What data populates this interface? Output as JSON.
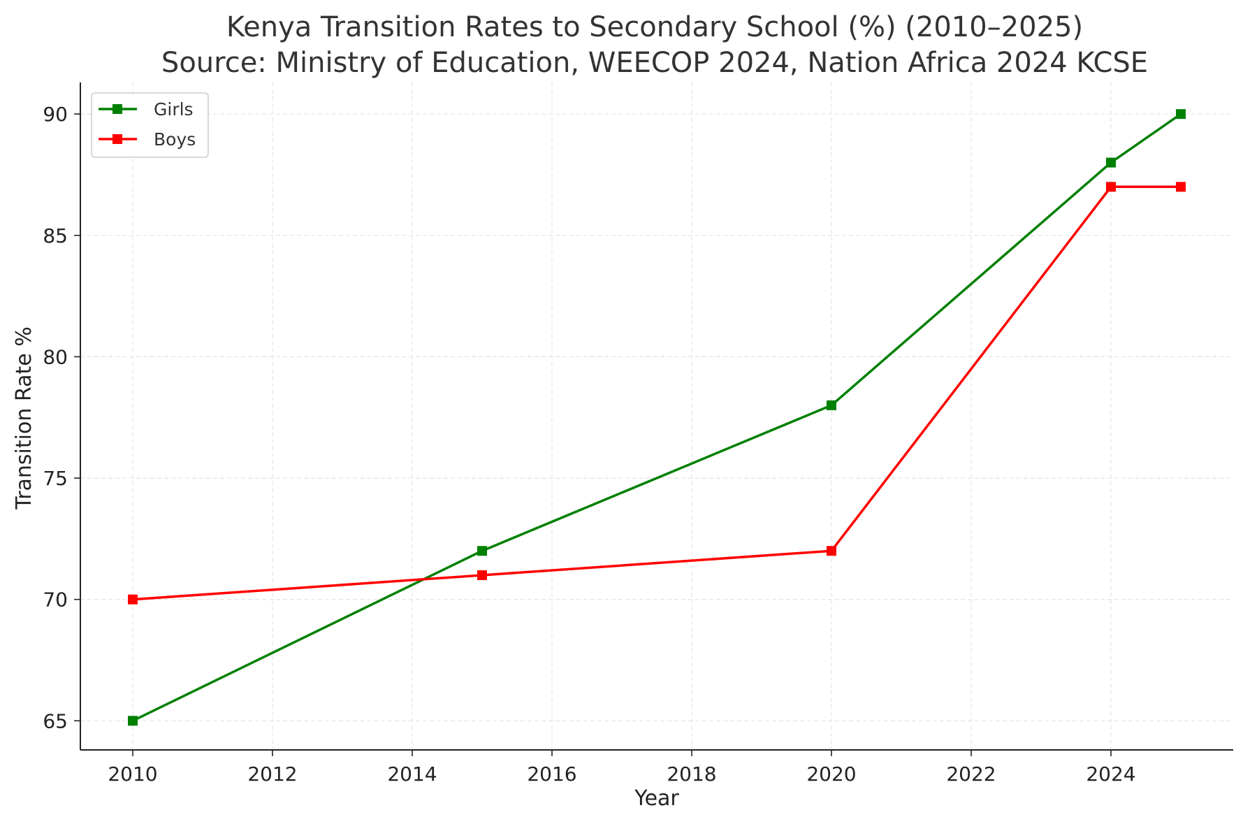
{
  "chart_data": {
    "type": "line",
    "title": "Kenya Transition Rates to Secondary School (%) (2010–2025)",
    "subtitle": "Source: Ministry of Education, WEECOP 2024, Nation Africa 2024 KCSE",
    "xlabel": "Year",
    "ylabel": "Transition Rate %",
    "xlim": [
      2009.25,
      2025.75
    ],
    "ylim": [
      63.8,
      91.3
    ],
    "xticks": [
      2010,
      2012,
      2014,
      2016,
      2018,
      2020,
      2022,
      2024
    ],
    "yticks": [
      65,
      70,
      75,
      80,
      85,
      90
    ],
    "grid": true,
    "legend_position": "top-left",
    "x": [
      2010,
      2015,
      2020,
      2024,
      2025
    ],
    "series": [
      {
        "name": "Girls",
        "color": "#008000",
        "marker": "square",
        "values": [
          65,
          72,
          78,
          88,
          90
        ]
      },
      {
        "name": "Boys",
        "color": "#ff0000",
        "marker": "square",
        "values": [
          70,
          71,
          72,
          87,
          87
        ]
      }
    ]
  }
}
